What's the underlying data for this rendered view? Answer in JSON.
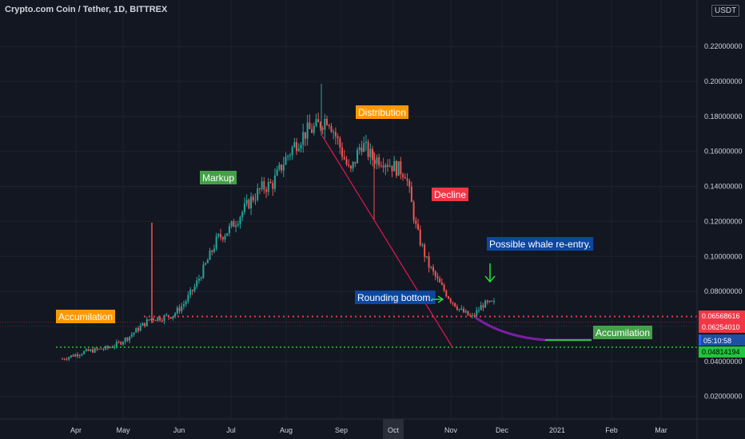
{
  "header": {
    "title": "Crypto.com Coin / Tether, 1D, BITTREX",
    "currency_badge": "USDT"
  },
  "colors": {
    "background": "#131722",
    "up_candle": "#26a69a",
    "down_candle": "#ef5350",
    "trend_line": "#e0174f",
    "curve": "#7b1fa2",
    "resistance": "#f23645",
    "support": "#22c53b",
    "accumulation_label": "#ff9800",
    "markup_label": "#43a047",
    "distribution_label": "#ff9800",
    "decline_label": "#f23645",
    "note_label": "#0d47a1",
    "arrow": "#22e03b"
  },
  "chart_data": {
    "type": "candlestick",
    "ylim": [
      0.0,
      0.24
    ],
    "y_ticks": [
      "0.02000000",
      "0.04000000",
      "0.06000000",
      "0.08000000",
      "0.10000000",
      "0.12000000",
      "0.14000000",
      "0.16000000",
      "0.18000000",
      "0.20000000",
      "0.22000000"
    ],
    "x_ticks": [
      "Apr",
      "May",
      "Jun",
      "Jul",
      "Aug",
      "Sep",
      "Oct",
      "Nov",
      "Dec",
      "2021",
      "Feb",
      "Mar"
    ],
    "highlighted_x_tick": "Oct",
    "price_levels": [
      {
        "value": 0.06568616,
        "label": "0.06568616",
        "style": "dotted",
        "color": "#f23645"
      },
      {
        "value": 0.0625401,
        "label": "0.06254010",
        "style": "thin",
        "color": "#f23645"
      },
      {
        "value": 0.04814194,
        "label": "0.04814194",
        "style": "dotted",
        "color": "#22c53b"
      }
    ],
    "countdown": "05:10:58",
    "annotations": [
      {
        "text": "Accumilation",
        "kind": "accumulation"
      },
      {
        "text": "Markup",
        "kind": "markup"
      },
      {
        "text": "Distribution",
        "kind": "distribution"
      },
      {
        "text": "Decline",
        "kind": "decline"
      },
      {
        "text": "Possible whale re-entry.",
        "kind": "note"
      },
      {
        "text": "Rounding bottom.",
        "kind": "note"
      },
      {
        "text": "Accumilation",
        "kind": "markup"
      }
    ],
    "price_path": [
      [
        0.041,
        0.042
      ],
      [
        0.043,
        0.044
      ],
      [
        0.045,
        0.046
      ],
      [
        0.046,
        0.047
      ],
      [
        0.047,
        0.048
      ],
      [
        0.049,
        0.051
      ],
      [
        0.053,
        0.055
      ],
      [
        0.058,
        0.061
      ],
      [
        0.063,
        0.066
      ],
      [
        0.064,
        0.066
      ],
      [
        0.065,
        0.068
      ],
      [
        0.07,
        0.076
      ],
      [
        0.08,
        0.086
      ],
      [
        0.092,
        0.1
      ],
      [
        0.106,
        0.114
      ],
      [
        0.112,
        0.118
      ],
      [
        0.12,
        0.126
      ],
      [
        0.13,
        0.134
      ],
      [
        0.138,
        0.14
      ],
      [
        0.141,
        0.142
      ],
      [
        0.15,
        0.158
      ],
      [
        0.162,
        0.166
      ],
      [
        0.168,
        0.174
      ],
      [
        0.172,
        0.176
      ],
      [
        0.178,
        0.182
      ],
      [
        0.168,
        0.16
      ],
      [
        0.15,
        0.144
      ],
      [
        0.16,
        0.17
      ],
      [
        0.158,
        0.154
      ],
      [
        0.155,
        0.156
      ],
      [
        0.152,
        0.15
      ],
      [
        0.156,
        0.14
      ],
      [
        0.12,
        0.11
      ],
      [
        0.1,
        0.092
      ],
      [
        0.088,
        0.082
      ],
      [
        0.078,
        0.074
      ],
      [
        0.07,
        0.068
      ],
      [
        0.066,
        0.064
      ],
      [
        0.07,
        0.075
      ],
      [
        0.08,
        0.066
      ]
    ]
  }
}
